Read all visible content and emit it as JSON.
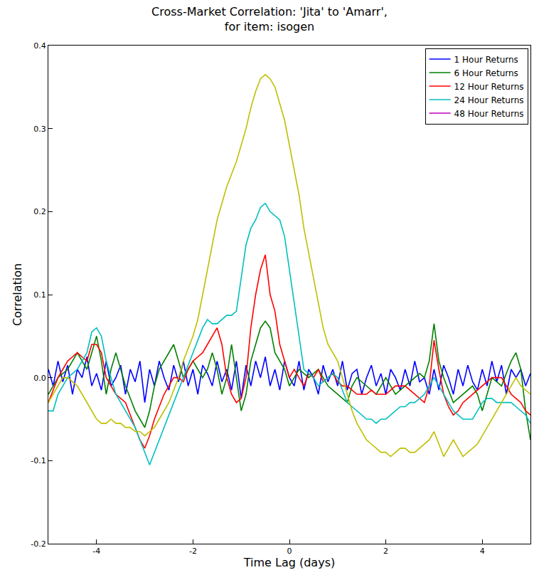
{
  "chart_data": {
    "type": "line",
    "title": "Cross-Market Correlation: 'Jita' to 'Amarr',\nfor item: isogen",
    "x_label": "Time Lag (days)",
    "y_label": "Correlation",
    "xlim": [
      -5,
      5
    ],
    "xticks": [
      -4,
      -2,
      0,
      2,
      4
    ],
    "ylim": [
      -0.2,
      0.4
    ],
    "yticks": [
      -0.2,
      -0.1,
      {
        "value": 0,
        "label": "0.0"
      },
      0.1,
      0.2,
      0.3,
      0.4
    ],
    "grid": false,
    "legend": "upper right",
    "x": [
      -5,
      -4.9,
      -4.8,
      -4.7,
      -4.6,
      -4.5,
      -4.4,
      -4.3,
      -4.2,
      -4.1,
      -4,
      -3.9,
      -3.8,
      -3.7,
      -3.6,
      -3.5,
      -3.4,
      -3.3,
      -3.2,
      -3.1,
      -3,
      -2.9,
      -2.8,
      -2.7,
      -2.6,
      -2.5,
      -2.4,
      -2.3,
      -2.2,
      -2.1,
      -2,
      -1.9,
      -1.8,
      -1.7,
      -1.6,
      -1.5,
      -1.4,
      -1.3,
      -1.2,
      -1.1,
      -1,
      -0.9,
      -0.8,
      -0.7,
      -0.6,
      -0.5,
      -0.4,
      -0.3,
      -0.2,
      -0.1,
      0,
      0.1,
      0.2,
      0.3,
      0.4,
      0.5,
      0.6,
      0.7,
      0.8,
      0.9,
      1,
      1.1,
      1.2,
      1.3,
      1.4,
      1.5,
      1.6,
      1.7,
      1.8,
      1.9,
      2,
      2.1,
      2.2,
      2.3,
      2.4,
      2.5,
      2.6,
      2.7,
      2.8,
      2.9,
      3,
      3.1,
      3.2,
      3.3,
      3.4,
      3.5,
      3.6,
      3.7,
      3.8,
      3.9,
      4,
      4.1,
      4.2,
      4.3,
      4.4,
      4.5,
      4.6,
      4.7,
      4.8,
      4.9,
      5
    ],
    "series": [
      {
        "name": "1 Hour Returns",
        "color": "#0000ff",
        "values": [
          0.01,
          -0.01,
          0.02,
          -0.005,
          0.015,
          -0.02,
          0.01,
          0.0,
          0.025,
          -0.01,
          0.005,
          -0.015,
          0.02,
          -0.01,
          0.0,
          0.015,
          -0.02,
          0.01,
          -0.005,
          0.02,
          -0.03,
          0.01,
          -0.01,
          0.02,
          0.0,
          -0.015,
          0.015,
          -0.005,
          0.02,
          -0.01,
          0.01,
          -0.02,
          0.015,
          0.005,
          -0.01,
          0.02,
          -0.005,
          0.01,
          -0.015,
          0.02,
          -0.025,
          0.015,
          -0.01,
          0.02,
          0.0,
          0.025,
          -0.01,
          0.01,
          -0.015,
          0.02,
          0.0,
          -0.01,
          0.02,
          -0.015,
          0.01,
          0.0,
          -0.02,
          0.015,
          -0.005,
          0.01,
          -0.01,
          0.02,
          -0.015,
          0.005,
          0.01,
          -0.02,
          0.0,
          0.015,
          -0.01,
          0.005,
          -0.02,
          0.01,
          0.0,
          -0.015,
          0.01,
          -0.01,
          0.02,
          -0.005,
          0.0,
          -0.02,
          0.01,
          -0.015,
          0.015,
          0.0,
          -0.02,
          0.01,
          -0.01,
          0.015,
          -0.005,
          -0.015,
          0.01,
          -0.01,
          0.02,
          -0.005,
          0.015,
          -0.02,
          0.01,
          0.0,
          0.01,
          -0.01,
          0.005
        ]
      },
      {
        "name": "6 Hour Returns",
        "color": "#008000",
        "values": [
          -0.02,
          -0.01,
          0.0,
          0.005,
          0.01,
          0.02,
          0.03,
          0.02,
          0.01,
          0.03,
          0.05,
          0.02,
          -0.02,
          0.01,
          0.03,
          0.01,
          -0.01,
          -0.025,
          -0.04,
          -0.05,
          -0.06,
          -0.04,
          -0.01,
          0.01,
          0.02,
          0.03,
          0.04,
          0.02,
          0.0,
          0.01,
          0.02,
          0.01,
          0.0,
          0.01,
          0.03,
          0.01,
          -0.02,
          0.0,
          0.04,
          0.0,
          -0.04,
          -0.02,
          0.02,
          0.04,
          0.06,
          0.068,
          0.06,
          0.03,
          0.02,
          0.01,
          -0.01,
          0.0,
          0.01,
          0.005,
          0.0,
          0.005,
          0.01,
          0.0,
          -0.01,
          -0.015,
          -0.02,
          -0.025,
          -0.03,
          -0.01,
          0.0,
          -0.005,
          -0.01,
          -0.015,
          -0.02,
          -0.01,
          0.0,
          -0.01,
          -0.02,
          -0.015,
          -0.01,
          -0.005,
          0.0,
          0.005,
          0.0,
          0.02,
          0.065,
          0.02,
          0.0,
          -0.015,
          -0.03,
          -0.025,
          -0.02,
          -0.015,
          -0.01,
          -0.02,
          -0.04,
          -0.02,
          0.0,
          -0.005,
          -0.01,
          0.005,
          0.02,
          0.03,
          0.01,
          -0.04,
          -0.075
        ]
      },
      {
        "name": "12 Hour Returns",
        "color": "#ff0000",
        "values": [
          -0.03,
          -0.015,
          0.0,
          0.01,
          0.02,
          0.025,
          0.03,
          0.025,
          0.02,
          0.04,
          0.04,
          0.03,
          0.0,
          -0.01,
          -0.02,
          -0.025,
          -0.03,
          -0.045,
          -0.06,
          -0.075,
          -0.085,
          -0.07,
          -0.05,
          -0.035,
          -0.02,
          -0.01,
          0.0,
          0.0,
          -0.005,
          0.01,
          0.02,
          0.025,
          0.03,
          0.04,
          0.05,
          0.06,
          0.04,
          0.0,
          -0.02,
          -0.03,
          -0.025,
          0.0,
          0.06,
          0.1,
          0.13,
          0.148,
          0.1,
          0.08,
          0.04,
          0.02,
          0.0,
          0.01,
          0.0,
          -0.01,
          0.005,
          0.0,
          0.01,
          -0.005,
          0.0,
          0.005,
          -0.005,
          -0.01,
          -0.01,
          -0.015,
          -0.02,
          -0.02,
          -0.02,
          -0.015,
          -0.02,
          -0.02,
          -0.02,
          -0.015,
          -0.01,
          -0.01,
          -0.01,
          -0.015,
          -0.02,
          -0.025,
          -0.03,
          -0.01,
          0.045,
          0.01,
          -0.02,
          -0.035,
          -0.045,
          -0.04,
          -0.03,
          -0.025,
          -0.02,
          -0.015,
          -0.01,
          -0.005,
          0.0,
          0.0,
          0.0,
          -0.01,
          -0.02,
          -0.025,
          -0.03,
          -0.04,
          -0.045
        ]
      },
      {
        "name": "24 Hour Returns",
        "color": "#00bfbf",
        "values": [
          -0.04,
          -0.04,
          -0.02,
          -0.01,
          0.0,
          0.005,
          0.01,
          0.02,
          0.03,
          0.055,
          0.06,
          0.05,
          0.02,
          0.0,
          -0.02,
          -0.03,
          -0.04,
          -0.05,
          -0.06,
          -0.075,
          -0.09,
          -0.105,
          -0.09,
          -0.075,
          -0.06,
          -0.045,
          -0.03,
          -0.015,
          0.0,
          0.015,
          0.03,
          0.045,
          0.06,
          0.07,
          0.065,
          0.065,
          0.07,
          0.075,
          0.075,
          0.08,
          0.12,
          0.16,
          0.18,
          0.19,
          0.205,
          0.21,
          0.2,
          0.195,
          0.19,
          0.17,
          0.13,
          0.09,
          0.05,
          0.01,
          0.005,
          0.0,
          -0.01,
          -0.005,
          0.0,
          0.005,
          0.0,
          -0.015,
          -0.03,
          -0.035,
          -0.04,
          -0.045,
          -0.05,
          -0.05,
          -0.055,
          -0.05,
          -0.05,
          -0.045,
          -0.04,
          -0.035,
          -0.035,
          -0.03,
          -0.03,
          -0.025,
          -0.02,
          -0.01,
          0.0,
          -0.01,
          -0.02,
          -0.03,
          -0.04,
          -0.045,
          -0.05,
          -0.05,
          -0.05,
          -0.04,
          -0.03,
          -0.025,
          -0.025,
          -0.03,
          -0.03,
          -0.03,
          -0.03,
          -0.035,
          -0.04,
          -0.045,
          -0.055
        ]
      },
      {
        "name": "48 Hour Returns",
        "color": "#bf00bf",
        "values": [
          null,
          null,
          null,
          null,
          null,
          null,
          null,
          null,
          null,
          null,
          null,
          null,
          null,
          null,
          null,
          null,
          null,
          null,
          null,
          null,
          null,
          null,
          null,
          null,
          null,
          null,
          null,
          null,
          null,
          null,
          null,
          null,
          null,
          null,
          null,
          null,
          null,
          null,
          null,
          null,
          null,
          null,
          null,
          null,
          null,
          null,
          null,
          null,
          null,
          null,
          null,
          null,
          null,
          null,
          null,
          null,
          null,
          null,
          null,
          null,
          null,
          null,
          null,
          null,
          null,
          null,
          null,
          null,
          null,
          null,
          null,
          null,
          null,
          null,
          null,
          null,
          null,
          null,
          null,
          null,
          null,
          null,
          null,
          null,
          null,
          null,
          null,
          null,
          null,
          null,
          null,
          null,
          null,
          null,
          null,
          null,
          null,
          null,
          null,
          null,
          null
        ]
      },
      {
        "color": "#bfbf00",
        "values": [
          -0.03,
          -0.02,
          -0.01,
          0.0,
          0.0,
          -0.005,
          -0.01,
          -0.02,
          -0.03,
          -0.04,
          -0.05,
          -0.055,
          -0.055,
          -0.05,
          -0.055,
          -0.055,
          -0.06,
          -0.06,
          -0.065,
          -0.065,
          -0.07,
          -0.065,
          -0.06,
          -0.05,
          -0.04,
          -0.03,
          -0.015,
          0.0,
          0.02,
          0.035,
          0.05,
          0.07,
          0.1,
          0.13,
          0.16,
          0.19,
          0.21,
          0.23,
          0.245,
          0.26,
          0.28,
          0.3,
          0.325,
          0.345,
          0.36,
          0.365,
          0.36,
          0.35,
          0.33,
          0.31,
          0.28,
          0.25,
          0.22,
          0.18,
          0.15,
          0.12,
          0.09,
          0.06,
          0.04,
          0.03,
          0.02,
          0.0,
          -0.02,
          -0.04,
          -0.055,
          -0.065,
          -0.075,
          -0.08,
          -0.085,
          -0.09,
          -0.09,
          -0.095,
          -0.09,
          -0.085,
          -0.085,
          -0.09,
          -0.09,
          -0.085,
          -0.08,
          -0.075,
          -0.065,
          -0.08,
          -0.095,
          -0.085,
          -0.075,
          -0.085,
          -0.095,
          -0.09,
          -0.085,
          -0.08,
          -0.07,
          -0.06,
          -0.05,
          -0.04,
          -0.03,
          -0.02,
          -0.01,
          0.0,
          -0.01,
          -0.015,
          -0.02
        ]
      }
    ]
  }
}
